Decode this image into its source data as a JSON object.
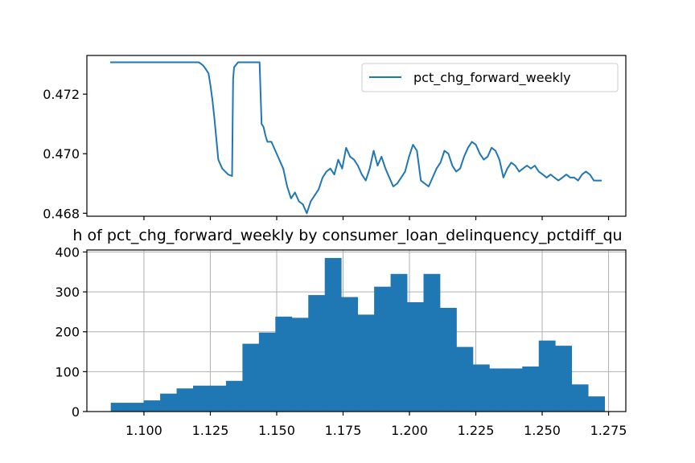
{
  "chart_data": [
    {
      "type": "line",
      "title": "",
      "xlabel": "",
      "ylabel": "",
      "ylim": [
        0.4679,
        0.4733
      ],
      "yticks": [
        "0.468",
        "0.470",
        "0.472"
      ],
      "legend": {
        "entries": [
          "pct_chg_forward_weekly"
        ],
        "placement": "top-right"
      },
      "grid": false,
      "series": [
        {
          "name": "pct_chg_forward_weekly",
          "color": "#1f77b4",
          "x": [
            0,
            10,
            30,
            45,
            46,
            47,
            48,
            50,
            51,
            52,
            53,
            55,
            57,
            60,
            62,
            62.5,
            63,
            65,
            66,
            67,
            68,
            70,
            72,
            74,
            75,
            76,
            77,
            78,
            79,
            80,
            82,
            84,
            86,
            88,
            90,
            92,
            94,
            96,
            98,
            100,
            102,
            104,
            106,
            108,
            110,
            112,
            114,
            116,
            118,
            120,
            122,
            124,
            126,
            128,
            130,
            132,
            134,
            136,
            138,
            140,
            142,
            144,
            146,
            148,
            150,
            152,
            154,
            156,
            158,
            160,
            162,
            164,
            166,
            168,
            170,
            172,
            174,
            176,
            178,
            180,
            182,
            184,
            186,
            188,
            190,
            192,
            194,
            196,
            198,
            200,
            202,
            204,
            206,
            208,
            210,
            212,
            214,
            216,
            218,
            220,
            222,
            224,
            226,
            228,
            230,
            232,
            234,
            236,
            238,
            240,
            242,
            244,
            246,
            248,
            250
          ],
          "values": [
            0.47307,
            0.47307,
            0.47307,
            0.47307,
            0.47303,
            0.47298,
            0.4729,
            0.4727,
            0.4723,
            0.4718,
            0.4712,
            0.4698,
            0.4695,
            0.4693,
            0.46925,
            0.4725,
            0.4729,
            0.47307,
            0.47307,
            0.47307,
            0.47307,
            0.47307,
            0.47307,
            0.47307,
            0.47307,
            0.47307,
            0.471,
            0.4709,
            0.4706,
            0.4704,
            0.4704,
            0.4701,
            0.4698,
            0.4695,
            0.4689,
            0.4685,
            0.4687,
            0.4684,
            0.4683,
            0.468,
            0.4684,
            0.4686,
            0.4688,
            0.4692,
            0.4694,
            0.4695,
            0.4693,
            0.4698,
            0.4695,
            0.4702,
            0.4699,
            0.4698,
            0.4696,
            0.4693,
            0.4691,
            0.4695,
            0.4701,
            0.4696,
            0.4699,
            0.4695,
            0.4692,
            0.4689,
            0.469,
            0.4692,
            0.4694,
            0.4699,
            0.4703,
            0.4701,
            0.4691,
            0.469,
            0.4689,
            0.4692,
            0.4695,
            0.4697,
            0.4701,
            0.47,
            0.4696,
            0.4694,
            0.4695,
            0.4699,
            0.4702,
            0.4704,
            0.4703,
            0.47,
            0.4698,
            0.4699,
            0.4702,
            0.4701,
            0.4698,
            0.4692,
            0.4695,
            0.4697,
            0.4696,
            0.4694,
            0.4695,
            0.4696,
            0.4695,
            0.4696,
            0.4694,
            0.4693,
            0.4692,
            0.4693,
            0.4692,
            0.4691,
            0.4692,
            0.4693,
            0.4692,
            0.4692,
            0.4691,
            0.4693,
            0.4694,
            0.4693,
            0.4691,
            0.4691,
            0.4691
          ]
        }
      ]
    },
    {
      "type": "bar",
      "title": "h of pct_chg_forward_weekly by consumer_loan_delinquency_pctdiff_qu",
      "xlabel": "",
      "ylabel": "",
      "xlim": [
        1.0785,
        1.2815
      ],
      "ylim": [
        0,
        405
      ],
      "xticks": [
        "1.100",
        "1.125",
        "1.150",
        "1.175",
        "1.200",
        "1.225",
        "1.250",
        "1.275"
      ],
      "yticks": [
        "0",
        "100",
        "200",
        "300",
        "400"
      ],
      "grid": true,
      "color": "#1f77b4",
      "bin_start": 1.0875,
      "bin_width": 0.0062,
      "values": [
        22,
        22,
        28,
        45,
        58,
        65,
        65,
        77,
        170,
        198,
        238,
        235,
        292,
        385,
        287,
        243,
        313,
        345,
        274,
        345,
        260,
        162,
        118,
        108,
        108,
        113,
        178,
        165,
        68,
        38
      ]
    }
  ]
}
